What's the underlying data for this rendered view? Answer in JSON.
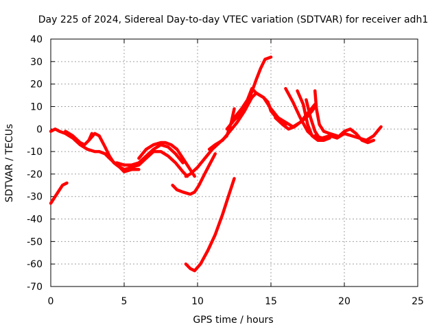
{
  "chart_data": {
    "type": "line",
    "title": "Day 225 of 2024, Sidereal Day-to-day VTEC variation (SDTVAR) for receiver adh1",
    "xlabel": "GPS time / hours",
    "ylabel": "SDTVAR / TECUs",
    "xlim": [
      0,
      25
    ],
    "ylim": [
      -70,
      40
    ],
    "xticks": [
      0,
      5,
      10,
      15,
      20,
      25
    ],
    "yticks": [
      -70,
      -60,
      -50,
      -40,
      -30,
      -20,
      -10,
      0,
      10,
      20,
      30,
      40
    ],
    "grid": true,
    "legend": "none",
    "colors": {
      "series": "#ff0000"
    },
    "series": [
      {
        "x": [
          0.0,
          0.2,
          0.4,
          0.6,
          0.8,
          1.1
        ],
        "values": [
          -33,
          -31,
          -29,
          -27,
          -25,
          -24
        ]
      },
      {
        "x": [
          0.0,
          0.3,
          0.6,
          1.0,
          1.5,
          2.0,
          2.5,
          3.0,
          3.3,
          3.7,
          4.0,
          4.5,
          5.0,
          5.5,
          6.0,
          6.5,
          7.0,
          7.5,
          8.0,
          8.5,
          9.0,
          9.3
        ],
        "values": [
          -1,
          0,
          -1,
          -2,
          -4,
          -7,
          -9,
          -10,
          -10,
          -11,
          -13,
          -16,
          -18,
          -17,
          -16,
          -13,
          -10,
          -10,
          -12,
          -15,
          -19,
          -21
        ]
      },
      {
        "x": [
          1.0,
          1.5,
          2.0,
          2.3,
          2.6,
          2.8
        ],
        "values": [
          -1,
          -3,
          -6,
          -7,
          -5,
          -2
        ]
      },
      {
        "x": [
          2.6,
          3.0,
          3.3,
          3.7,
          4.0,
          4.3,
          4.7,
          5.0,
          5.5,
          6.0
        ],
        "values": [
          -5,
          -2,
          -3,
          -8,
          -12,
          -15,
          -17,
          -19,
          -18,
          -18
        ]
      },
      {
        "x": [
          4.5,
          5.0,
          5.5,
          6.0,
          6.5,
          7.0,
          7.5,
          8.0,
          8.5,
          9.0
        ],
        "values": [
          -15,
          -16,
          -16,
          -15,
          -12,
          -9,
          -7,
          -8,
          -11,
          -15
        ]
      },
      {
        "x": [
          6.0,
          6.5,
          7.0,
          7.5,
          7.8,
          8.2,
          8.6,
          9.0,
          9.4,
          9.8
        ],
        "values": [
          -13,
          -9,
          -7,
          -6,
          -6,
          -7,
          -9,
          -13,
          -17,
          -21
        ]
      },
      {
        "x": [
          9.2,
          9.5,
          10.0,
          10.5,
          11.0,
          11.5,
          12.0,
          12.3,
          12.5
        ],
        "values": [
          -21,
          -20,
          -17,
          -13,
          -9,
          -6,
          -3,
          3,
          9
        ]
      },
      {
        "x": [
          8.3,
          8.6,
          9.0,
          9.5,
          9.8,
          10.1,
          10.4,
          10.8,
          11.2
        ],
        "values": [
          -25,
          -27,
          -28,
          -29,
          -28,
          -25,
          -21,
          -16,
          -11
        ]
      },
      {
        "x": [
          9.2,
          9.5,
          9.8,
          10.2,
          10.7,
          11.2,
          11.7,
          12.1,
          12.5
        ],
        "values": [
          -60,
          -62,
          -63,
          -60,
          -54,
          -47,
          -38,
          -30,
          -22
        ]
      },
      {
        "x": [
          10.8,
          11.2,
          11.7,
          12.2,
          12.7,
          13.2,
          13.7,
          14.0,
          14.5,
          15.0,
          15.5,
          16.0,
          16.5,
          17.0,
          17.5,
          18.0
        ],
        "values": [
          -9,
          -7,
          -5,
          -1,
          3,
          8,
          14,
          16,
          14,
          9,
          5,
          3,
          1,
          3,
          7,
          11
        ]
      },
      {
        "x": [
          12.5,
          13.0,
          13.4,
          13.7,
          14.0,
          14.5,
          14.8,
          15.0,
          15.5,
          16.0
        ],
        "values": [
          5,
          9,
          13,
          18,
          16,
          14,
          12,
          8,
          4,
          2
        ]
      },
      {
        "x": [
          12.0,
          12.5,
          13.0,
          13.5,
          14.0,
          14.3,
          14.6,
          15.0
        ],
        "values": [
          0,
          4,
          7,
          13,
          22,
          27,
          31,
          32
        ]
      },
      {
        "x": [
          15.3,
          15.8,
          16.2,
          16.6,
          17.0,
          17.4,
          17.8,
          18.0
        ],
        "values": [
          5,
          2,
          0,
          1,
          3,
          5,
          8,
          10
        ]
      },
      {
        "x": [
          16.0,
          16.5,
          17.0,
          17.5,
          18.0,
          18.5,
          19.0
        ],
        "values": [
          18,
          12,
          5,
          -1,
          -4,
          -4,
          -3
        ]
      },
      {
        "x": [
          16.8,
          17.2,
          17.5,
          17.8,
          18.2,
          18.6
        ],
        "values": [
          17,
          11,
          2,
          -3,
          -5,
          -5
        ]
      },
      {
        "x": [
          17.4,
          17.7,
          18.0,
          18.3,
          18.6,
          19.0
        ],
        "values": [
          13,
          5,
          -1,
          -4,
          -5,
          -4
        ]
      },
      {
        "x": [
          18.0,
          18.1,
          18.3,
          18.6,
          19.0,
          19.5
        ],
        "values": [
          17,
          9,
          2,
          -1,
          -2,
          -3
        ]
      },
      {
        "x": [
          18.0,
          18.5,
          19.0,
          19.5,
          20.0,
          20.5,
          21.0,
          21.5,
          22.0,
          22.5
        ],
        "values": [
          -3,
          -4,
          -3,
          -4,
          -2,
          -3,
          -4,
          -5,
          -3,
          1
        ]
      },
      {
        "x": [
          19.5,
          20.0,
          20.4,
          20.8,
          21.2,
          21.6,
          22.0
        ],
        "values": [
          -4,
          -1,
          0,
          -2,
          -5,
          -6,
          -5
        ]
      }
    ]
  }
}
